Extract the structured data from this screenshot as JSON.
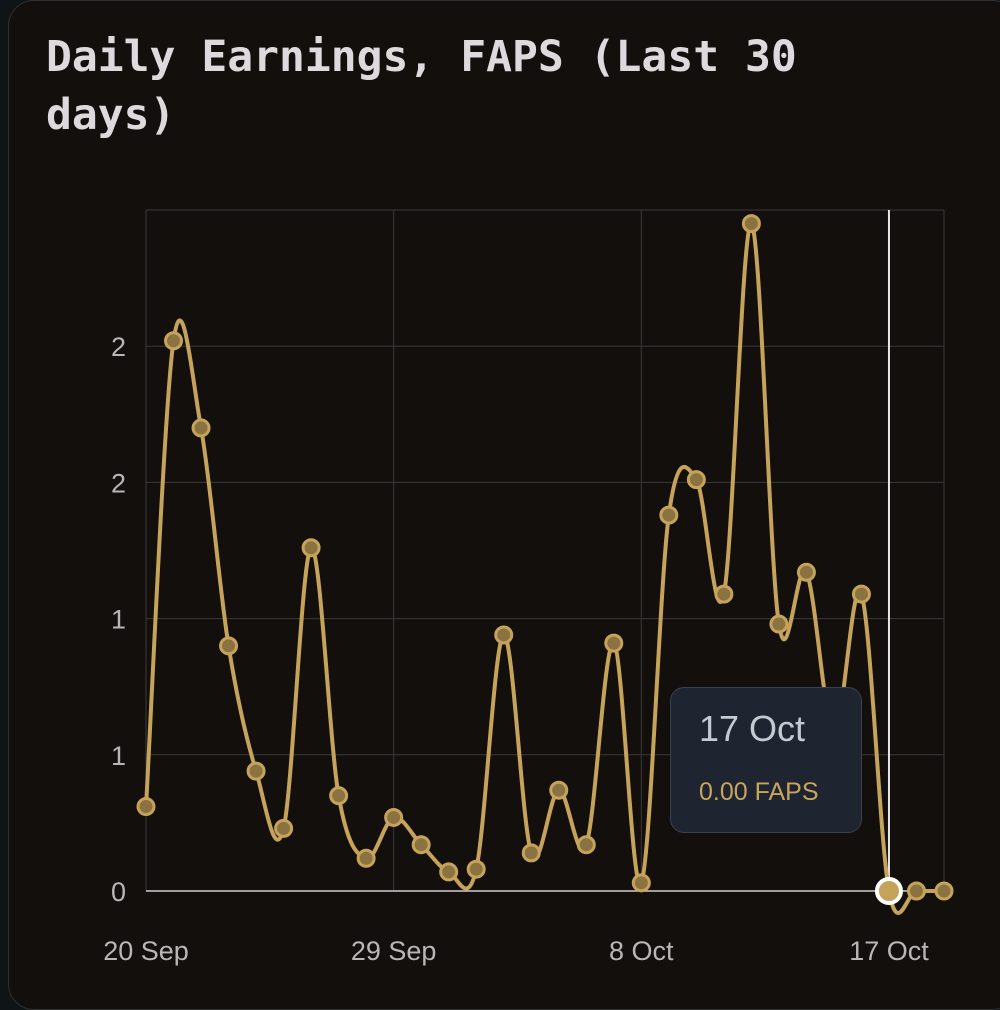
{
  "title": "Daily Earnings, FAPS (Last 30 days)",
  "tooltip": {
    "date": "17 Oct",
    "value": "0.00 FAPS"
  },
  "colors": {
    "line": "#c5a35a",
    "background": "#130f0d",
    "grid": "#3a3a3a",
    "axis_text": "#b9b6b8",
    "highlight_marker": "#ffffff",
    "tooltip_bg": "#1e2530"
  },
  "chart_data": {
    "type": "line",
    "title": "Daily Earnings, FAPS (Last 30 days)",
    "xlabel": "",
    "ylabel": "",
    "x_tick_labels": [
      "20 Sep",
      "29 Sep",
      "8 Oct",
      "17 Oct"
    ],
    "y_tick_labels": [
      "0",
      "1",
      "1",
      "2",
      "2"
    ],
    "ylim": [
      0,
      2.5
    ],
    "grid": true,
    "highlighted_point": "17 Oct",
    "x": [
      "20 Sep",
      "21 Sep",
      "22 Sep",
      "23 Sep",
      "24 Sep",
      "25 Sep",
      "26 Sep",
      "27 Sep",
      "28 Sep",
      "29 Sep",
      "30 Sep",
      "1 Oct",
      "2 Oct",
      "3 Oct",
      "4 Oct",
      "5 Oct",
      "6 Oct",
      "7 Oct",
      "8 Oct",
      "9 Oct",
      "10 Oct",
      "11 Oct",
      "12 Oct",
      "13 Oct",
      "14 Oct",
      "15 Oct",
      "16 Oct",
      "17 Oct",
      "18 Oct",
      "19 Oct"
    ],
    "series": [
      {
        "values": [
          0.31,
          2.02,
          1.7,
          0.9,
          0.44,
          0.23,
          1.26,
          0.35,
          0.12,
          0.27,
          0.17,
          0.07,
          0.08,
          0.94,
          0.14,
          0.37,
          0.17,
          0.91,
          0.03,
          1.38,
          1.51,
          1.09,
          2.45,
          0.98,
          1.17,
          0.58,
          1.09,
          0.0,
          0.0,
          0.0
        ]
      }
    ]
  }
}
